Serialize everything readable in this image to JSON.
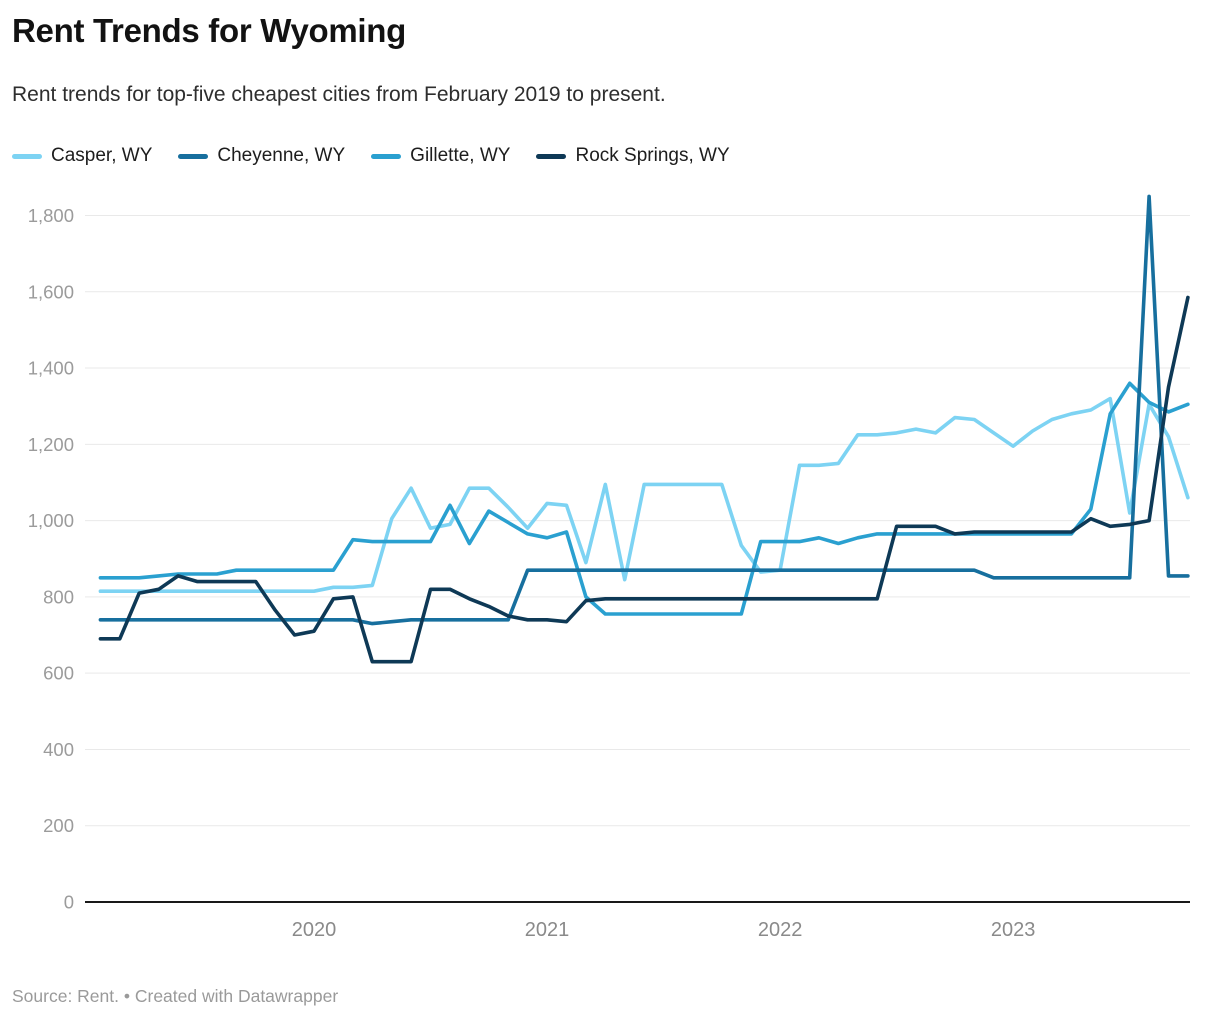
{
  "header": {
    "title": "Rent Trends for Wyoming",
    "subtitle": "Rent trends for top-five cheapest cities from February 2019 to present."
  },
  "footer": {
    "text": "Source: Rent. • Created with Datawrapper"
  },
  "chart_data": {
    "type": "line",
    "title": "Rent Trends for Wyoming",
    "subtitle": "Rent trends for top-five cheapest cities from February 2019 to present.",
    "xlabel": "",
    "ylabel": "",
    "ylim": [
      0,
      1850
    ],
    "grid": true,
    "legend_position": "top",
    "x": [
      "2019-02",
      "2019-03",
      "2019-04",
      "2019-05",
      "2019-06",
      "2019-07",
      "2019-08",
      "2019-09",
      "2019-10",
      "2019-11",
      "2019-12",
      "2020-01",
      "2020-02",
      "2020-03",
      "2020-04",
      "2020-05",
      "2020-06",
      "2020-07",
      "2020-08",
      "2020-09",
      "2020-10",
      "2020-11",
      "2020-12",
      "2021-01",
      "2021-02",
      "2021-03",
      "2021-04",
      "2021-05",
      "2021-06",
      "2021-07",
      "2021-08",
      "2021-09",
      "2021-10",
      "2021-11",
      "2021-12",
      "2022-01",
      "2022-02",
      "2022-03",
      "2022-04",
      "2022-05",
      "2022-06",
      "2022-07",
      "2022-08",
      "2022-09",
      "2022-10",
      "2022-11",
      "2022-12",
      "2023-01",
      "2023-02",
      "2023-03",
      "2023-04",
      "2023-05",
      "2023-06",
      "2023-07",
      "2023-08",
      "2023-09",
      "2023-10"
    ],
    "x_axis_ticks": [
      {
        "label": "2020",
        "month_index": 11
      },
      {
        "label": "2021",
        "month_index": 23
      },
      {
        "label": "2022",
        "month_index": 35
      },
      {
        "label": "2023",
        "month_index": 47
      }
    ],
    "y_ticks": [
      {
        "value": 0,
        "label": "0"
      },
      {
        "value": 200,
        "label": "200"
      },
      {
        "value": 400,
        "label": "400"
      },
      {
        "value": 600,
        "label": "600"
      },
      {
        "value": 800,
        "label": "800"
      },
      {
        "value": 1000,
        "label": "1,000"
      },
      {
        "value": 1200,
        "label": "1,200"
      },
      {
        "value": 1400,
        "label": "1,400"
      },
      {
        "value": 1600,
        "label": "1,600"
      },
      {
        "value": 1800,
        "label": "1,800"
      }
    ],
    "draw_order": [
      0,
      2,
      1,
      3
    ],
    "series": [
      {
        "name": "Casper, WY",
        "color": "#7DD3F3",
        "values": [
          815,
          815,
          815,
          815,
          815,
          815,
          815,
          815,
          815,
          815,
          815,
          815,
          825,
          825,
          830,
          1005,
          1085,
          980,
          990,
          1085,
          1085,
          1035,
          980,
          1045,
          1040,
          890,
          1095,
          845,
          1095,
          1095,
          1095,
          1095,
          1095,
          935,
          865,
          870,
          1145,
          1145,
          1150,
          1225,
          1225,
          1230,
          1240,
          1230,
          1270,
          1265,
          1230,
          1195,
          1235,
          1265,
          1280,
          1290,
          1320,
          1020,
          1305,
          1220,
          1060
        ]
      },
      {
        "name": "Cheyenne, WY",
        "color": "#176F9E",
        "values": [
          740,
          740,
          740,
          740,
          740,
          740,
          740,
          740,
          740,
          740,
          740,
          740,
          740,
          740,
          730,
          735,
          740,
          740,
          740,
          740,
          740,
          740,
          870,
          870,
          870,
          870,
          870,
          870,
          870,
          870,
          870,
          870,
          870,
          870,
          870,
          870,
          870,
          870,
          870,
          870,
          870,
          870,
          870,
          870,
          870,
          870,
          850,
          850,
          850,
          850,
          850,
          850,
          850,
          850,
          1850,
          855,
          855
        ]
      },
      {
        "name": "Gillette, WY",
        "color": "#2AA0D0",
        "values": [
          850,
          850,
          850,
          855,
          860,
          860,
          860,
          870,
          870,
          870,
          870,
          870,
          870,
          950,
          945,
          945,
          945,
          945,
          1040,
          940,
          1025,
          995,
          965,
          955,
          970,
          800,
          755,
          755,
          755,
          755,
          755,
          755,
          755,
          755,
          945,
          945,
          945,
          955,
          940,
          955,
          965,
          965,
          965,
          965,
          965,
          965,
          965,
          965,
          965,
          965,
          965,
          1030,
          1280,
          1360,
          1310,
          1285,
          1305
        ]
      },
      {
        "name": "Rock Springs, WY",
        "color": "#0E3956",
        "values": [
          690,
          690,
          810,
          820,
          855,
          840,
          840,
          840,
          840,
          765,
          700,
          710,
          795,
          800,
          630,
          630,
          630,
          820,
          820,
          795,
          775,
          750,
          740,
          740,
          735,
          790,
          795,
          795,
          795,
          795,
          795,
          795,
          795,
          795,
          795,
          795,
          795,
          795,
          795,
          795,
          795,
          985,
          985,
          985,
          965,
          970,
          970,
          970,
          970,
          970,
          970,
          1005,
          985,
          990,
          1000,
          1350,
          1585
        ]
      }
    ]
  }
}
